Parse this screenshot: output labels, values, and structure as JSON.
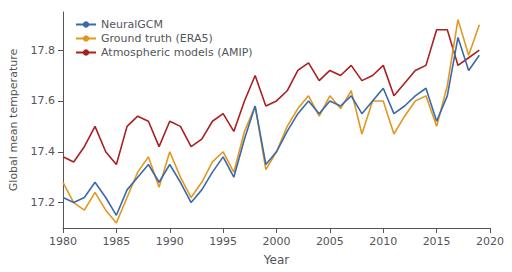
{
  "chart_data": {
    "type": "line",
    "xlabel": "Year",
    "ylabel": "Global mean temperature",
    "xlim": [
      1980,
      2020
    ],
    "ylim": [
      17.1,
      17.95
    ],
    "xticks": [
      1980,
      1985,
      1990,
      1995,
      2000,
      2005,
      2010,
      2015,
      2020
    ],
    "yticks": [
      17.2,
      17.4,
      17.6,
      17.8
    ],
    "grid": false,
    "legend": "upper left",
    "x": [
      1980,
      1981,
      1982,
      1983,
      1984,
      1985,
      1986,
      1987,
      1988,
      1989,
      1990,
      1991,
      1992,
      1993,
      1994,
      1995,
      1996,
      1997,
      1998,
      1999,
      2000,
      2001,
      2002,
      2003,
      2004,
      2005,
      2006,
      2007,
      2008,
      2009,
      2010,
      2011,
      2012,
      2013,
      2014,
      2015,
      2016,
      2017,
      2018,
      2019
    ],
    "series": [
      {
        "name": "Atmospheric models (AMIP)",
        "color": "#aa2020",
        "values": [
          17.38,
          17.36,
          17.42,
          17.5,
          17.4,
          17.35,
          17.5,
          17.54,
          17.52,
          17.42,
          17.52,
          17.5,
          17.42,
          17.45,
          17.52,
          17.55,
          17.48,
          17.6,
          17.7,
          17.58,
          17.6,
          17.64,
          17.72,
          17.75,
          17.68,
          17.72,
          17.7,
          17.74,
          17.68,
          17.7,
          17.74,
          17.62,
          17.67,
          17.72,
          17.74,
          17.88,
          17.88,
          17.74,
          17.77,
          17.8
        ]
      },
      {
        "name": "Ground truth (ERA5)",
        "color": "#e09820",
        "values": [
          17.28,
          17.2,
          17.17,
          17.24,
          17.17,
          17.12,
          17.22,
          17.32,
          17.38,
          17.26,
          17.4,
          17.3,
          17.22,
          17.28,
          17.36,
          17.4,
          17.32,
          17.48,
          17.58,
          17.33,
          17.4,
          17.5,
          17.57,
          17.62,
          17.54,
          17.62,
          17.57,
          17.64,
          17.47,
          17.6,
          17.6,
          17.47,
          17.54,
          17.6,
          17.62,
          17.5,
          17.66,
          17.92,
          17.78,
          17.9
        ]
      },
      {
        "name": "NeuralGCM",
        "color": "#3b6aaa",
        "values": [
          17.22,
          17.2,
          17.22,
          17.28,
          17.22,
          17.15,
          17.25,
          17.3,
          17.35,
          17.28,
          17.35,
          17.28,
          17.2,
          17.25,
          17.32,
          17.38,
          17.3,
          17.45,
          17.58,
          17.35,
          17.4,
          17.48,
          17.55,
          17.6,
          17.55,
          17.6,
          17.58,
          17.62,
          17.55,
          17.6,
          17.65,
          17.55,
          17.58,
          17.62,
          17.65,
          17.52,
          17.62,
          17.85,
          17.72,
          17.78
        ]
      }
    ]
  }
}
